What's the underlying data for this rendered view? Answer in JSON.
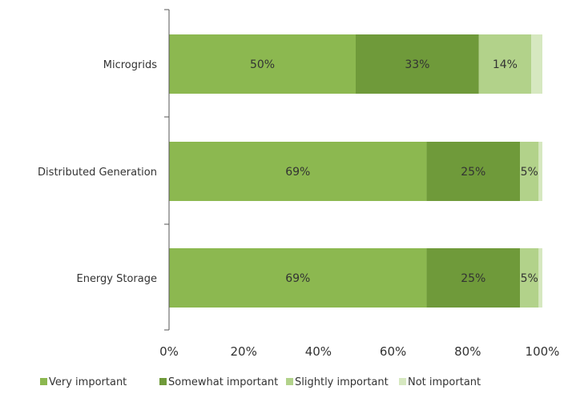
{
  "colors": {
    "very_important": "#8cb850",
    "somewhat_important": "#6f9a3a",
    "slightly_important": "#b2d28a",
    "not_important": "#d6e8c0"
  },
  "chart_data": {
    "type": "bar",
    "orientation": "horizontal",
    "stacked": true,
    "categories": [
      "Microgrids",
      "Distributed Generation",
      "Energy Storage"
    ],
    "series": [
      {
        "name": "Very important",
        "values": [
          50,
          69,
          69
        ],
        "labels": [
          "50%",
          "69%",
          "69%"
        ]
      },
      {
        "name": "Somewhat important",
        "values": [
          33,
          25,
          25
        ],
        "labels": [
          "33%",
          "25%",
          "25%"
        ]
      },
      {
        "name": "Slightly important",
        "values": [
          14,
          5,
          5
        ],
        "labels": [
          "14%",
          "5%",
          "5%"
        ]
      },
      {
        "name": "Not important",
        "values": [
          3,
          1,
          1
        ],
        "labels": [
          "",
          "",
          ""
        ]
      }
    ],
    "xlim": [
      0,
      100
    ],
    "xticks": [
      "0%",
      "20%",
      "40%",
      "60%",
      "80%",
      "100%"
    ],
    "grid": false,
    "legend_position": "bottom"
  }
}
